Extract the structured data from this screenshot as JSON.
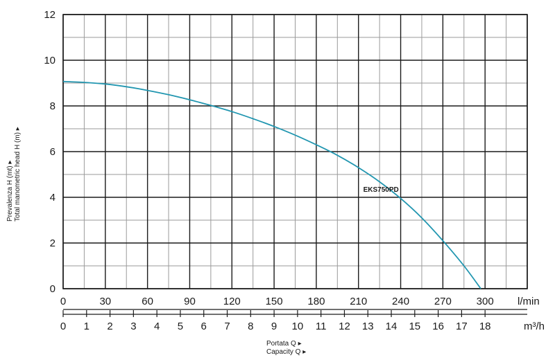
{
  "chart_data": {
    "type": "line",
    "title": "",
    "ylabel_lines": [
      "Prevalenza H (mt) ▸",
      "Total manometric head H (m) ▸"
    ],
    "xlabel_lines": [
      "Portata Q ▸",
      "Capacity Q ▸"
    ],
    "ylim": [
      0,
      12
    ],
    "yticks": [
      0,
      2,
      4,
      6,
      8,
      10,
      12
    ],
    "x_lmin": {
      "unit": "l/min",
      "lim": [
        0,
        330
      ],
      "ticks": [
        0,
        30,
        60,
        90,
        120,
        150,
        180,
        210,
        240,
        270,
        300
      ]
    },
    "x_m3h": {
      "unit": "m³/h",
      "ticks": [
        0,
        1,
        2,
        3,
        4,
        5,
        6,
        7,
        8,
        9,
        10,
        11,
        12,
        13,
        14,
        15,
        16,
        17,
        18
      ]
    },
    "grid": true,
    "series": [
      {
        "name": "EKS750PD",
        "color": "#2196b0",
        "x": [
          0,
          15,
          30,
          45,
          60,
          75,
          90,
          105,
          120,
          135,
          150,
          165,
          180,
          195,
          210,
          225,
          240,
          255,
          270,
          285,
          297
        ],
        "y": [
          9.07,
          9.03,
          8.96,
          8.84,
          8.68,
          8.49,
          8.27,
          8.02,
          7.75,
          7.44,
          7.1,
          6.72,
          6.3,
          5.84,
          5.3,
          4.68,
          3.95,
          3.1,
          2.1,
          1.0,
          0.0
        ]
      }
    ]
  }
}
